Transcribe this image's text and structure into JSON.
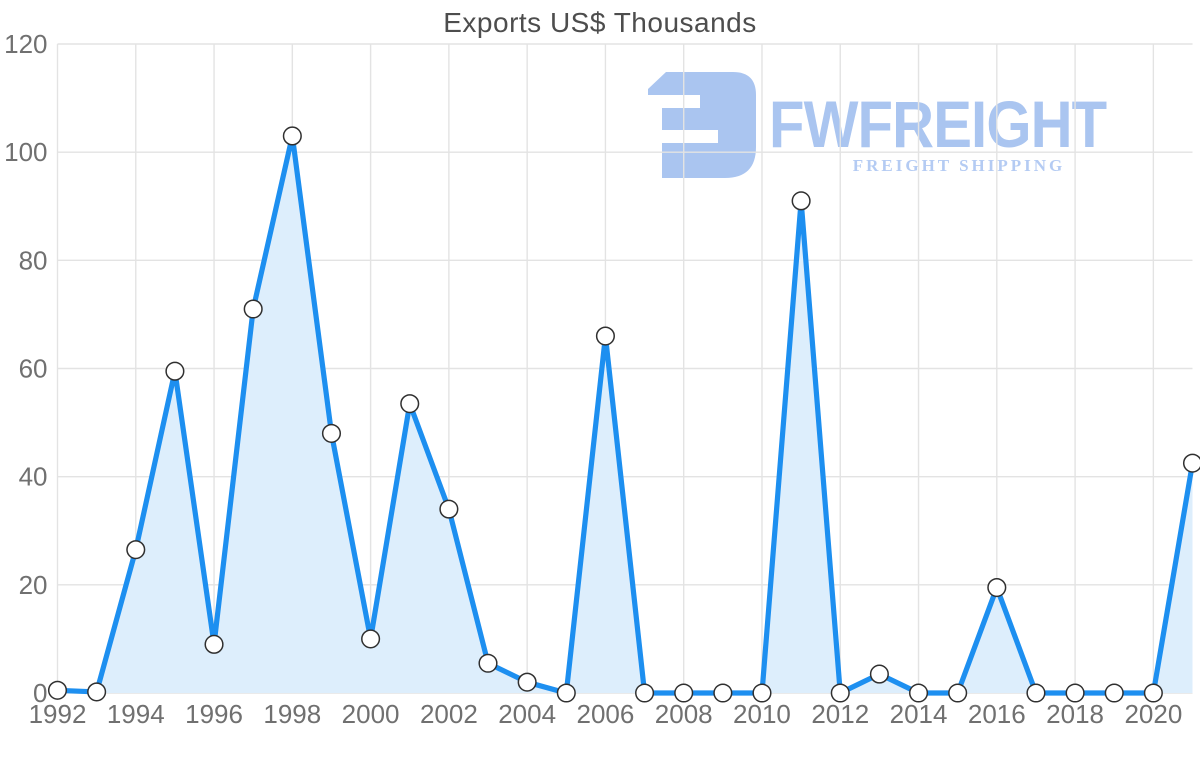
{
  "title": "Exports US$ Thousands",
  "watermark": {
    "brand": "FWFREIGHT",
    "tagline": "FREIGHT SHIPPING",
    "color": "#9cbbee"
  },
  "colors": {
    "line": "#1d8ff0",
    "fill": "#ddeefc",
    "marker_fill": "#ffffff",
    "marker_stroke": "#303030",
    "grid": "#e3e3e3",
    "axis_text": "#707070",
    "title_text": "#4d4d4d"
  },
  "chart_data": {
    "type": "area",
    "title": "Exports US$ Thousands",
    "xlabel": "",
    "ylabel": "",
    "x": [
      1992,
      1993,
      1994,
      1995,
      1996,
      1997,
      1998,
      1999,
      2000,
      2001,
      2002,
      2003,
      2004,
      2005,
      2006,
      2007,
      2008,
      2009,
      2010,
      2011,
      2012,
      2013,
      2014,
      2015,
      2016,
      2017,
      2018,
      2019,
      2020,
      2021
    ],
    "values": [
      0.5,
      0.2,
      26.5,
      59.5,
      9,
      71,
      103,
      48,
      10,
      53.5,
      34,
      5.5,
      2,
      0,
      66,
      0,
      0,
      0,
      0,
      91,
      0,
      3.5,
      0,
      0,
      19.5,
      0,
      0,
      0,
      0,
      42.5
    ],
    "ylim": [
      0,
      120
    ],
    "y_ticks": [
      0,
      20,
      40,
      60,
      80,
      100,
      120
    ],
    "x_tick_years": [
      1992,
      1994,
      1996,
      1998,
      2000,
      2002,
      2004,
      2006,
      2008,
      2010,
      2012,
      2014,
      2016,
      2018,
      2020
    ],
    "grid": true,
    "legend": false,
    "marker": "circle"
  }
}
